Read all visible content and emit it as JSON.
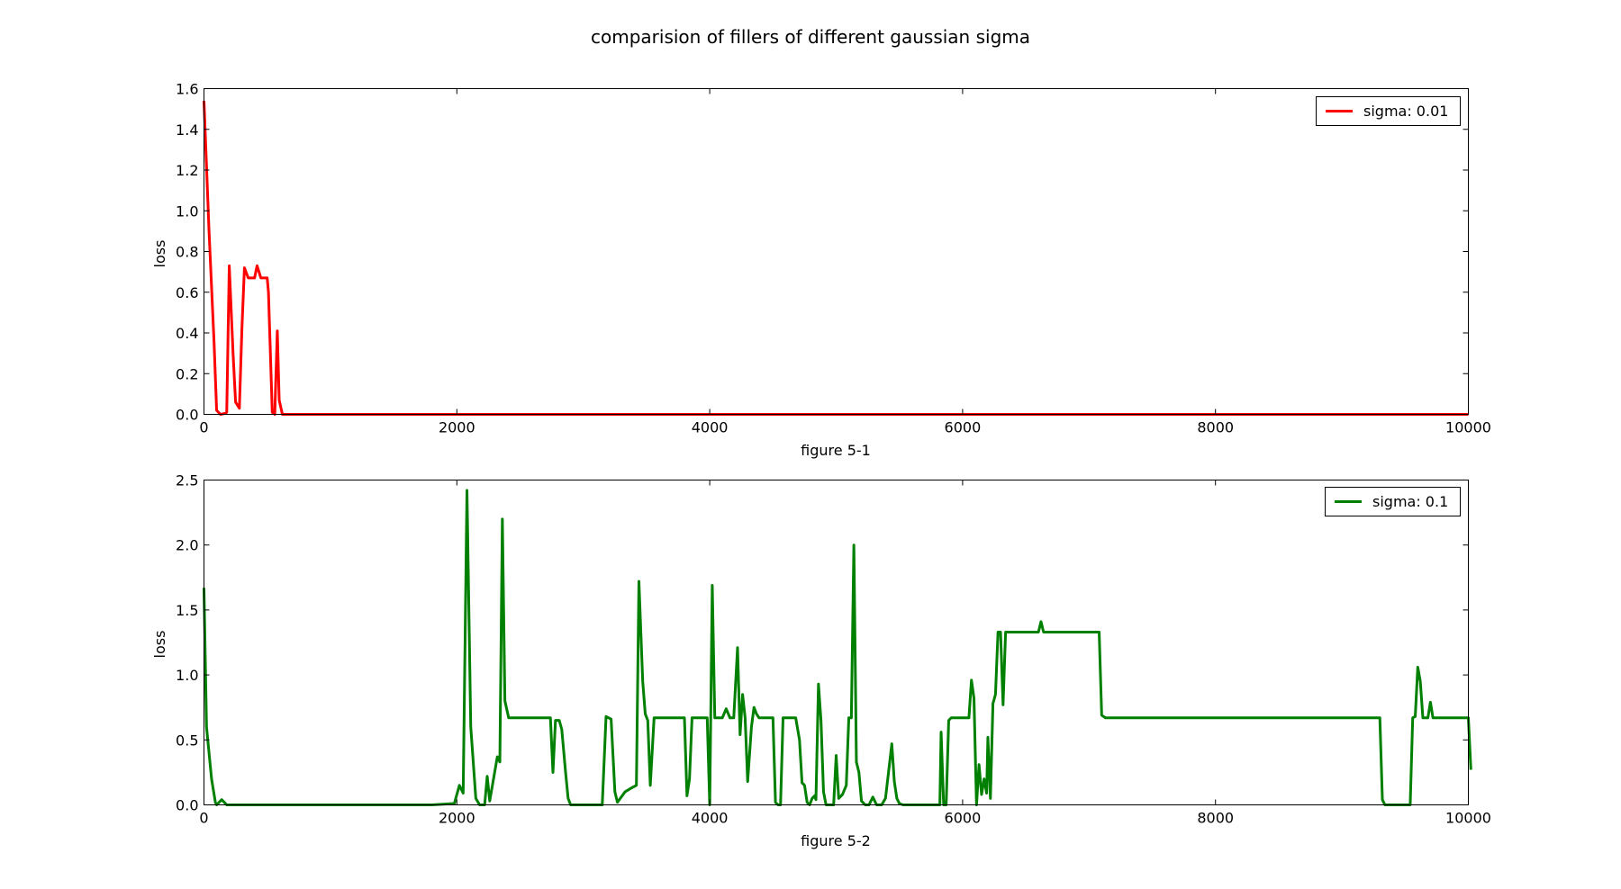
{
  "figure": {
    "title": "comparision of fillers of different gaussian sigma"
  },
  "chart_data": [
    {
      "type": "line",
      "title": "",
      "xlabel": "figure 5-1",
      "ylabel": "loss",
      "xlim": [
        0,
        10000
      ],
      "ylim": [
        0,
        1.6
      ],
      "xticks": [
        0,
        2000,
        4000,
        6000,
        8000,
        10000
      ],
      "yticks": [
        0.0,
        0.2,
        0.4,
        0.6,
        0.8,
        1.0,
        1.2,
        1.4,
        1.6
      ],
      "xtick_labels": [
        "0",
        "2000",
        "4000",
        "6000",
        "8000",
        "10000"
      ],
      "ytick_labels": [
        "0.0",
        "0.2",
        "0.4",
        "0.6",
        "0.8",
        "1.0",
        "1.2",
        "1.4",
        "1.6"
      ],
      "grid": false,
      "legend_position": "top-right",
      "series": [
        {
          "name": "sigma: 0.01",
          "color": "#ff0000",
          "points": [
            [
              0,
              1.54
            ],
            [
              40,
              0.9
            ],
            [
              80,
              0.35
            ],
            [
              100,
              0.02
            ],
            [
              130,
              0.0
            ],
            [
              170,
              0.005
            ],
            [
              180,
              0.01
            ],
            [
              200,
              0.73
            ],
            [
              230,
              0.3
            ],
            [
              250,
              0.06
            ],
            [
              280,
              0.03
            ],
            [
              300,
              0.42
            ],
            [
              320,
              0.72
            ],
            [
              350,
              0.67
            ],
            [
              400,
              0.67
            ],
            [
              420,
              0.73
            ],
            [
              450,
              0.67
            ],
            [
              500,
              0.67
            ],
            [
              510,
              0.6
            ],
            [
              540,
              0.01
            ],
            [
              560,
              0.0
            ],
            [
              580,
              0.41
            ],
            [
              595,
              0.07
            ],
            [
              620,
              0.0
            ],
            [
              700,
              0.0
            ],
            [
              1000,
              0.0
            ],
            [
              2000,
              0.0
            ],
            [
              3000,
              0.0
            ],
            [
              4000,
              0.0
            ],
            [
              5000,
              0.0
            ],
            [
              6000,
              0.0
            ],
            [
              7000,
              0.0
            ],
            [
              8000,
              0.0
            ],
            [
              9000,
              0.0
            ],
            [
              10000,
              0.0
            ]
          ]
        }
      ]
    },
    {
      "type": "line",
      "title": "",
      "xlabel": "figure 5-2",
      "ylabel": "loss",
      "xlim": [
        0,
        10000
      ],
      "ylim": [
        0,
        2.5
      ],
      "xticks": [
        0,
        2000,
        4000,
        6000,
        8000,
        10000
      ],
      "yticks": [
        0.0,
        0.5,
        1.0,
        1.5,
        2.0,
        2.5
      ],
      "xtick_labels": [
        "0",
        "2000",
        "4000",
        "6000",
        "8000",
        "10000"
      ],
      "ytick_labels": [
        "0.0",
        "0.5",
        "1.0",
        "1.5",
        "2.0",
        "2.5"
      ],
      "grid": false,
      "legend_position": "top-right",
      "series": [
        {
          "name": "sigma: 0.1",
          "color": "#008000",
          "points": [
            [
              0,
              1.67
            ],
            [
              20,
              0.6
            ],
            [
              60,
              0.2
            ],
            [
              90,
              0.02
            ],
            [
              100,
              0.0
            ],
            [
              140,
              0.04
            ],
            [
              180,
              0.0
            ],
            [
              500,
              0.0
            ],
            [
              1000,
              0.0
            ],
            [
              1800,
              0.0
            ],
            [
              1980,
              0.01
            ],
            [
              2020,
              0.15
            ],
            [
              2050,
              0.09
            ],
            [
              2080,
              2.42
            ],
            [
              2110,
              0.6
            ],
            [
              2150,
              0.05
            ],
            [
              2180,
              0.0
            ],
            [
              2220,
              0.0
            ],
            [
              2240,
              0.22
            ],
            [
              2260,
              0.03
            ],
            [
              2290,
              0.2
            ],
            [
              2320,
              0.37
            ],
            [
              2340,
              0.33
            ],
            [
              2360,
              2.2
            ],
            [
              2380,
              0.8
            ],
            [
              2410,
              0.67
            ],
            [
              2500,
              0.67
            ],
            [
              2700,
              0.67
            ],
            [
              2740,
              0.67
            ],
            [
              2760,
              0.25
            ],
            [
              2780,
              0.65
            ],
            [
              2810,
              0.65
            ],
            [
              2830,
              0.58
            ],
            [
              2860,
              0.25
            ],
            [
              2880,
              0.05
            ],
            [
              2900,
              0.0
            ],
            [
              3000,
              0.0
            ],
            [
              3150,
              0.0
            ],
            [
              3180,
              0.68
            ],
            [
              3220,
              0.66
            ],
            [
              3250,
              0.1
            ],
            [
              3270,
              0.02
            ],
            [
              3300,
              0.06
            ],
            [
              3330,
              0.1
            ],
            [
              3380,
              0.13
            ],
            [
              3420,
              0.15
            ],
            [
              3440,
              1.72
            ],
            [
              3470,
              0.95
            ],
            [
              3490,
              0.7
            ],
            [
              3510,
              0.65
            ],
            [
              3530,
              0.15
            ],
            [
              3560,
              0.67
            ],
            [
              3700,
              0.67
            ],
            [
              3800,
              0.67
            ],
            [
              3820,
              0.07
            ],
            [
              3840,
              0.2
            ],
            [
              3860,
              0.67
            ],
            [
              3950,
              0.67
            ],
            [
              3980,
              0.67
            ],
            [
              4000,
              0.0
            ],
            [
              4020,
              1.69
            ],
            [
              4040,
              0.67
            ],
            [
              4080,
              0.67
            ],
            [
              4100,
              0.67
            ],
            [
              4130,
              0.74
            ],
            [
              4160,
              0.67
            ],
            [
              4190,
              0.67
            ],
            [
              4220,
              1.21
            ],
            [
              4240,
              0.54
            ],
            [
              4260,
              0.85
            ],
            [
              4280,
              0.67
            ],
            [
              4300,
              0.18
            ],
            [
              4330,
              0.6
            ],
            [
              4350,
              0.75
            ],
            [
              4370,
              0.7
            ],
            [
              4390,
              0.67
            ],
            [
              4500,
              0.67
            ],
            [
              4520,
              0.02
            ],
            [
              4540,
              0.0
            ],
            [
              4560,
              0.0
            ],
            [
              4580,
              0.67
            ],
            [
              4680,
              0.67
            ],
            [
              4710,
              0.5
            ],
            [
              4730,
              0.17
            ],
            [
              4750,
              0.15
            ],
            [
              4770,
              0.02
            ],
            [
              4790,
              0.0
            ],
            [
              4810,
              0.05
            ],
            [
              4830,
              0.07
            ],
            [
              4840,
              0.04
            ],
            [
              4860,
              0.93
            ],
            [
              4880,
              0.65
            ],
            [
              4900,
              0.1
            ],
            [
              4920,
              0.0
            ],
            [
              4980,
              0.0
            ],
            [
              5000,
              0.38
            ],
            [
              5020,
              0.05
            ],
            [
              5050,
              0.08
            ],
            [
              5080,
              0.15
            ],
            [
              5100,
              0.67
            ],
            [
              5120,
              0.67
            ],
            [
              5140,
              2.0
            ],
            [
              5160,
              0.33
            ],
            [
              5180,
              0.25
            ],
            [
              5200,
              0.03
            ],
            [
              5230,
              0.0
            ],
            [
              5260,
              0.0
            ],
            [
              5290,
              0.06
            ],
            [
              5320,
              0.0
            ],
            [
              5360,
              0.0
            ],
            [
              5390,
              0.05
            ],
            [
              5420,
              0.3
            ],
            [
              5440,
              0.47
            ],
            [
              5460,
              0.18
            ],
            [
              5480,
              0.05
            ],
            [
              5500,
              0.01
            ],
            [
              5530,
              0.0
            ],
            [
              5800,
              0.0
            ],
            [
              5820,
              0.0
            ],
            [
              5830,
              0.56
            ],
            [
              5850,
              0.0
            ],
            [
              5870,
              0.0
            ],
            [
              5890,
              0.65
            ],
            [
              5910,
              0.67
            ],
            [
              6000,
              0.67
            ],
            [
              6050,
              0.67
            ],
            [
              6070,
              0.96
            ],
            [
              6090,
              0.82
            ],
            [
              6110,
              0.0
            ],
            [
              6130,
              0.31
            ],
            [
              6150,
              0.08
            ],
            [
              6170,
              0.2
            ],
            [
              6190,
              0.09
            ],
            [
              6200,
              0.52
            ],
            [
              6220,
              0.05
            ],
            [
              6240,
              0.78
            ],
            [
              6260,
              0.85
            ],
            [
              6280,
              1.33
            ],
            [
              6300,
              1.33
            ],
            [
              6320,
              0.77
            ],
            [
              6340,
              1.33
            ],
            [
              6500,
              1.33
            ],
            [
              6600,
              1.33
            ],
            [
              6620,
              1.41
            ],
            [
              6640,
              1.33
            ],
            [
              7000,
              1.33
            ],
            [
              7080,
              1.33
            ],
            [
              7100,
              0.69
            ],
            [
              7130,
              0.67
            ],
            [
              7500,
              0.67
            ],
            [
              8000,
              0.67
            ],
            [
              8500,
              0.67
            ],
            [
              9000,
              0.67
            ],
            [
              9300,
              0.67
            ],
            [
              9320,
              0.04
            ],
            [
              9340,
              0.0
            ],
            [
              9400,
              0.0
            ],
            [
              9540,
              0.0
            ],
            [
              9560,
              0.67
            ],
            [
              9580,
              0.68
            ],
            [
              9600,
              1.06
            ],
            [
              9620,
              0.95
            ],
            [
              9640,
              0.67
            ],
            [
              9680,
              0.67
            ],
            [
              9700,
              0.79
            ],
            [
              9720,
              0.67
            ],
            [
              10000,
              0.67
            ],
            [
              10020,
              0.27
            ]
          ]
        }
      ]
    }
  ]
}
